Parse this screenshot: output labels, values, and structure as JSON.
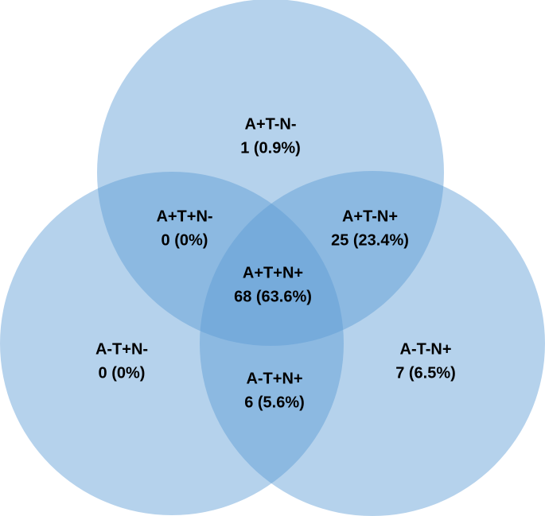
{
  "regions": [
    {
      "name": "A+T-N-",
      "count": "1 (0.9%)"
    },
    {
      "name": "A+T+N-",
      "count": "0 (0%)"
    },
    {
      "name": "A+T-N+",
      "count": "25 (23.4%)"
    },
    {
      "name": "A+T+N+",
      "count": "68 (63.6%)"
    },
    {
      "name": "A-T+N-",
      "count": "0 (0%)"
    },
    {
      "name": "A-T+N+",
      "count": "6 (5.6%)"
    },
    {
      "name": "A-T-N+",
      "count": "7 (6.5%)"
    }
  ]
}
